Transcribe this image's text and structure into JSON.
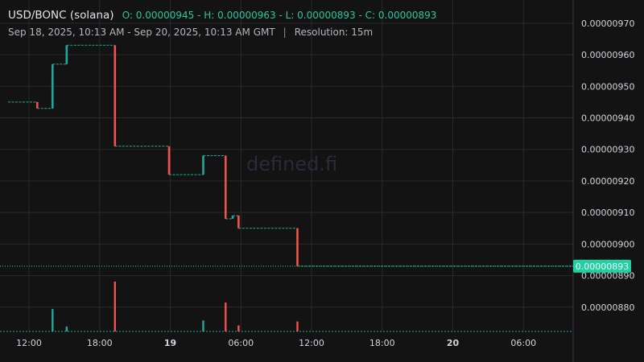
{
  "header": {
    "pair": "USD/BONC (solana)",
    "ohlc": "O: 0.00000945 - H: 0.00000963 - L: 0.00000893 - C: 0.00000893",
    "range": "Sep 18, 2025, 10:13 AM - Sep 20, 2025, 10:13 AM GMT",
    "separator": "|",
    "resolution": "Resolution: 15m"
  },
  "watermark": "defined.fi",
  "colors": {
    "background": "#131313",
    "up": "#26a69a",
    "down": "#ef5350",
    "grid": "#2a2a2a",
    "last_price": "#1fd1a0"
  },
  "chart_data": {
    "type": "candlestick",
    "title": "USD/BONC (solana)",
    "xlabel": "",
    "ylabel": "",
    "ylim": [
      8.723e-06,
      9.748e-06
    ],
    "y_ticks": [
      "0.00000970",
      "0.00000960",
      "0.00000950",
      "0.00000940",
      "0.00000930",
      "0.00000920",
      "0.00000910",
      "0.00000900",
      "0.00000890",
      "0.00000880"
    ],
    "y_tick_values": [
      9.7e-06,
      9.6e-06,
      9.5e-06,
      9.4e-06,
      9.3e-06,
      9.2e-06,
      9.1e-06,
      9e-06,
      8.9e-06,
      8.8e-06
    ],
    "x_ticks": [
      {
        "label": "12:00",
        "hour": 12,
        "bold": false
      },
      {
        "label": "18:00",
        "hour": 18,
        "bold": false
      },
      {
        "label": "19",
        "hour": 24,
        "bold": true
      },
      {
        "label": "06:00",
        "hour": 30,
        "bold": false
      },
      {
        "label": "12:00",
        "hour": 36,
        "bold": false
      },
      {
        "label": "18:00",
        "hour": 42,
        "bold": false
      },
      {
        "label": "20",
        "hour": 48,
        "bold": true
      },
      {
        "label": "06:00",
        "hour": 54,
        "bold": false
      }
    ],
    "x_range_hours": [
      10.22,
      58.22
    ],
    "last_price": 8.93e-06,
    "last_price_label": "0.00000893",
    "steps": [
      {
        "t0": 10.22,
        "t1": 12.7,
        "price": 9.45e-06
      },
      {
        "t0": 12.7,
        "t1": 14.0,
        "price": 9.43e-06
      },
      {
        "t0": 14.0,
        "t1": 15.2,
        "price": 9.57e-06
      },
      {
        "t0": 15.2,
        "t1": 19.3,
        "price": 9.63e-06
      },
      {
        "t0": 19.3,
        "t1": 23.9,
        "price": 9.31e-06
      },
      {
        "t0": 23.9,
        "t1": 26.8,
        "price": 9.22e-06
      },
      {
        "t0": 26.8,
        "t1": 28.7,
        "price": 9.28e-06
      },
      {
        "t0": 28.7,
        "t1": 29.3,
        "price": 9.08e-06
      },
      {
        "t0": 29.3,
        "t1": 29.8,
        "price": 9.09e-06
      },
      {
        "t0": 29.8,
        "t1": 34.8,
        "price": 9.05e-06
      },
      {
        "t0": 34.8,
        "t1": 58.22,
        "price": 8.93e-06
      }
    ],
    "candles": [
      {
        "t": 12.7,
        "open": 9.45e-06,
        "close": 9.43e-06,
        "high": 9.45e-06,
        "low": 9.43e-06
      },
      {
        "t": 14.0,
        "open": 9.43e-06,
        "close": 9.57e-06,
        "high": 9.57e-06,
        "low": 9.43e-06
      },
      {
        "t": 15.2,
        "open": 9.57e-06,
        "close": 9.63e-06,
        "high": 9.63e-06,
        "low": 9.57e-06
      },
      {
        "t": 19.3,
        "open": 9.63e-06,
        "close": 9.31e-06,
        "high": 9.63e-06,
        "low": 9.31e-06
      },
      {
        "t": 23.9,
        "open": 9.31e-06,
        "close": 9.22e-06,
        "high": 9.31e-06,
        "low": 9.22e-06
      },
      {
        "t": 26.8,
        "open": 9.22e-06,
        "close": 9.28e-06,
        "high": 9.28e-06,
        "low": 9.22e-06
      },
      {
        "t": 28.7,
        "open": 9.28e-06,
        "close": 9.08e-06,
        "high": 9.28e-06,
        "low": 9.08e-06
      },
      {
        "t": 29.3,
        "open": 9.08e-06,
        "close": 9.09e-06,
        "high": 9.09e-06,
        "low": 9.08e-06
      },
      {
        "t": 29.8,
        "open": 9.09e-06,
        "close": 9.05e-06,
        "high": 9.09e-06,
        "low": 9.05e-06
      },
      {
        "t": 34.8,
        "open": 9.05e-06,
        "close": 8.93e-06,
        "high": 9.05e-06,
        "low": 8.93e-06
      }
    ],
    "volume_relative": [
      {
        "t": 14.0,
        "v": 0.45,
        "dir": "up"
      },
      {
        "t": 15.2,
        "v": 0.1,
        "dir": "up"
      },
      {
        "t": 19.3,
        "v": 1.0,
        "dir": "down"
      },
      {
        "t": 26.8,
        "v": 0.22,
        "dir": "up"
      },
      {
        "t": 28.7,
        "v": 0.58,
        "dir": "down"
      },
      {
        "t": 29.8,
        "v": 0.12,
        "dir": "down"
      },
      {
        "t": 34.8,
        "v": 0.2,
        "dir": "down"
      }
    ]
  }
}
